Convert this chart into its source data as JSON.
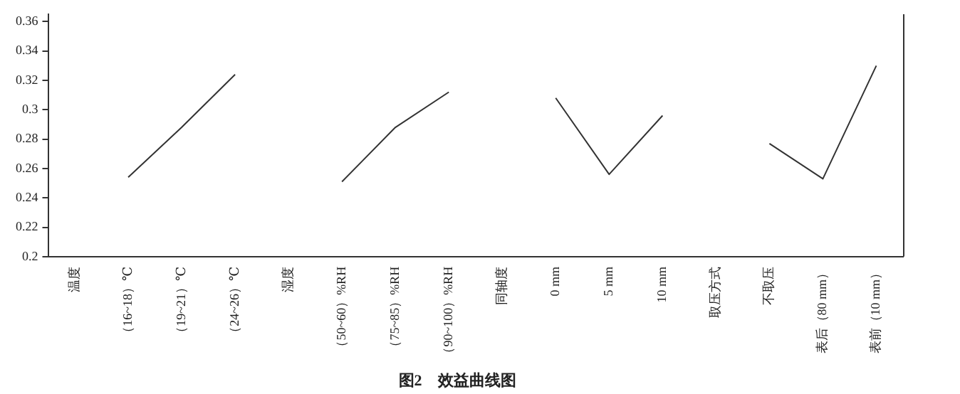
{
  "chart_data": {
    "type": "line",
    "title": "图2　效益曲线图",
    "categories": [
      "温度",
      "（16~18）℃",
      "（19~21）℃",
      "（24~26）℃",
      "湿度",
      "（50~60）%RH",
      "（75~85）%RH",
      "（90~100）%RH",
      "同轴度",
      "0 mm",
      "5 mm",
      "10 mm",
      "取压方式",
      "不取压",
      "表后（80 mm）",
      "表前（10 mm）"
    ],
    "values": [
      null,
      0.254,
      0.288,
      0.324,
      null,
      0.251,
      0.288,
      0.312,
      null,
      0.308,
      0.256,
      0.296,
      null,
      0.277,
      0.253,
      0.33
    ],
    "color": "#333333",
    "ylim": [
      0.2,
      0.365
    ],
    "yticks": [
      0.2,
      0.22,
      0.24,
      0.26,
      0.28,
      0.3,
      0.32,
      0.34,
      0.36
    ],
    "grid": false,
    "legend": false,
    "marker": "none",
    "line_style": "solid"
  }
}
